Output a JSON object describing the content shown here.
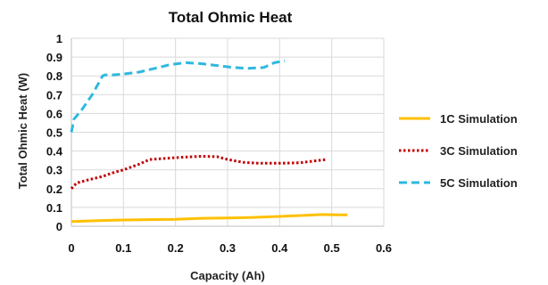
{
  "chart_data": {
    "type": "line",
    "title": "Total Ohmic Heat",
    "xlabel": "Capacity (Ah)",
    "ylabel": "Total Ohmic Heat (W)",
    "xlim": [
      0,
      0.6
    ],
    "ylim": [
      0,
      1
    ],
    "xticks": [
      "0",
      "0.1",
      "0.2",
      "0.3",
      "0.4",
      "0.5",
      "0.6"
    ],
    "yticks": [
      "0",
      "0.1",
      "0.2",
      "0.3",
      "0.4",
      "0.5",
      "0.6",
      "0.7",
      "0.8",
      "0.9",
      "1"
    ],
    "grid": true,
    "legend_position": "right",
    "series": [
      {
        "name": "1C Simulation",
        "color": "#FFC000",
        "style": "solid",
        "x": [
          0,
          0.05,
          0.1,
          0.15,
          0.2,
          0.25,
          0.3,
          0.35,
          0.4,
          0.45,
          0.48,
          0.5,
          0.53
        ],
        "y": [
          0.025,
          0.03,
          0.033,
          0.035,
          0.037,
          0.042,
          0.044,
          0.047,
          0.052,
          0.058,
          0.062,
          0.061,
          0.06
        ]
      },
      {
        "name": "3C Simulation",
        "color": "#C00000",
        "style": "dotted",
        "x": [
          0,
          0.01,
          0.03,
          0.06,
          0.08,
          0.1,
          0.13,
          0.15,
          0.2,
          0.25,
          0.28,
          0.3,
          0.33,
          0.36,
          0.4,
          0.44,
          0.46,
          0.49
        ],
        "y": [
          0.2,
          0.23,
          0.245,
          0.265,
          0.285,
          0.3,
          0.33,
          0.355,
          0.365,
          0.372,
          0.37,
          0.355,
          0.34,
          0.335,
          0.335,
          0.338,
          0.345,
          0.355
        ]
      },
      {
        "name": "5C Simulation",
        "color": "#2EB8E0",
        "style": "dashed",
        "x": [
          0,
          0.005,
          0.02,
          0.04,
          0.06,
          0.065,
          0.08,
          0.1,
          0.13,
          0.16,
          0.19,
          0.22,
          0.25,
          0.28,
          0.31,
          0.34,
          0.37,
          0.39,
          0.41
        ],
        "y": [
          0.5,
          0.57,
          0.62,
          0.7,
          0.8,
          0.805,
          0.805,
          0.81,
          0.82,
          0.84,
          0.86,
          0.87,
          0.865,
          0.855,
          0.845,
          0.84,
          0.845,
          0.87,
          0.88
        ]
      }
    ]
  }
}
